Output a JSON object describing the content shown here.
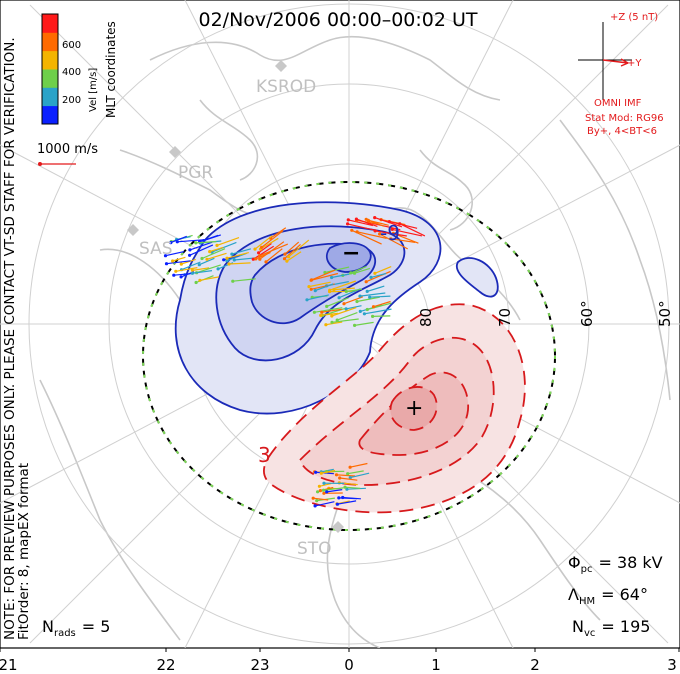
{
  "title": "02/Nov/2006 00:00–00:02 UT",
  "left_margin": {
    "note": "NOTE: FOR PREVIEW PURPOSES ONLY. PLEASE CONTACT VT-SD STAFF FOR VERIFICATION.",
    "fit_info": "FitOrder: 8, mapEX format"
  },
  "colorbar": {
    "label": "Vel [m/s]",
    "coord_label": "MLT coordinates",
    "ticks": [
      "200",
      "400",
      "600"
    ],
    "colors": [
      "#0b20ff",
      "#2aa3c8",
      "#6ed04a",
      "#f4b400",
      "#ff6a00",
      "#ff1a1a"
    ]
  },
  "vector_key": {
    "label": "1000 m/s"
  },
  "imf": {
    "scale_label": "+Z (5 nT)",
    "y_label": "+Y",
    "source": "OMNI IMF",
    "model": "Stat Mod: RG96",
    "condition": "By+, 4<BT<6",
    "color": "#e31a1c"
  },
  "stations": [
    "KSROD",
    "PGR",
    "SAS",
    "STO"
  ],
  "lat_labels": [
    "80",
    "70",
    "60°",
    "50°"
  ],
  "mlt_labels": [
    "21",
    "22",
    "23",
    "0",
    "1",
    "2",
    "3"
  ],
  "contour_labels": {
    "negative": "-9",
    "positive": "3"
  },
  "extrema": {
    "min": "−",
    "max": "+"
  },
  "stats": {
    "phi_symbol": "Φ",
    "phi_sub": "pc",
    "phi_value": "= 38 kV",
    "lambda_symbol": "Λ",
    "lambda_sub": "HM",
    "lambda_value": "= 64°",
    "nvc_symbol": "N",
    "nvc_sub": "vc",
    "nvc_value": "= 195",
    "nrads_symbol": "N",
    "nrads_sub": "rads",
    "nrads_value": "= 5"
  },
  "colors": {
    "negative_contour": "#1b2ab8",
    "negative_fill": "#c9cff0",
    "positive_contour": "#d7191c",
    "positive_fill": "#f6cfcf",
    "coast": "#c8c8c8",
    "grid": "#d0d0d0"
  }
}
